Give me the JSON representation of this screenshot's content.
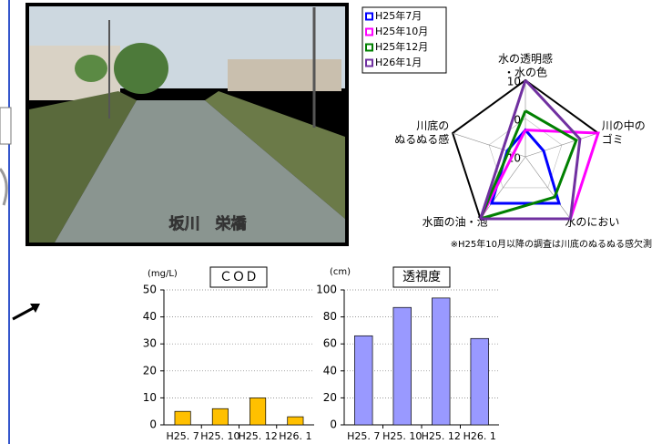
{
  "photo": {
    "caption": "坂川　栄橋"
  },
  "chart_data": [
    {
      "type": "radar",
      "axes": [
        [
          "水の透明感",
          "・水の色"
        ],
        [
          "川の中の",
          "ゴミ"
        ],
        [
          "水のにおい"
        ],
        [
          "水面の油・泡"
        ],
        [
          "川底の",
          "ぬるぬる感"
        ]
      ],
      "rlim": [
        -10,
        10
      ],
      "rticks": [
        -10,
        0,
        10
      ],
      "series": [
        {
          "name": "H25年7月",
          "color": "#0000ff",
          "values": [
            -3,
            -5,
            5,
            5,
            -5
          ]
        },
        {
          "name": "H25年10月",
          "color": "#ff00ff",
          "values": [
            -3,
            10,
            10,
            10,
            null
          ]
        },
        {
          "name": "H25年12月",
          "color": "#008000",
          "values": [
            2,
            4,
            3,
            10,
            null
          ]
        },
        {
          "name": "H26年1月",
          "color": "#7030a0",
          "values": [
            10,
            5,
            10,
            10,
            null
          ]
        }
      ],
      "note": "※H25年10月以降の調査は川底のぬるぬる感欠測"
    },
    {
      "type": "bar",
      "title": "ＣＯＤ",
      "unit": "(mg/L)",
      "categories": [
        "H25. 7",
        "H25. 10",
        "H25. 12",
        "H26. 1"
      ],
      "values": [
        5,
        6,
        10,
        3
      ],
      "color": "#ffc000",
      "ylim": [
        0,
        50
      ],
      "yticks": [
        0,
        10,
        20,
        30,
        40,
        50
      ],
      "grid": true
    },
    {
      "type": "bar",
      "title": "透視度",
      "unit": "(cm)",
      "categories": [
        "H25. 7",
        "H25. 10",
        "H25. 12",
        "H26. 1"
      ],
      "values": [
        66,
        87,
        94,
        64
      ],
      "color": "#9999ff",
      "ylim": [
        0,
        100
      ],
      "yticks": [
        0,
        20,
        40,
        60,
        80,
        100
      ],
      "grid": true
    }
  ]
}
